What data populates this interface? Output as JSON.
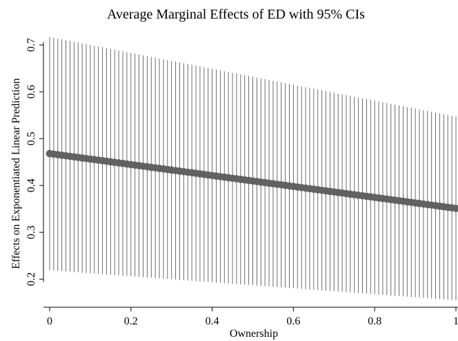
{
  "chart_data": {
    "type": "line",
    "title": "Average Marginal Effects of ED with 95% CIs",
    "xlabel": "Ownership",
    "ylabel": "Effects on Exponentiated Linear Prediction",
    "xlim": [
      0,
      1
    ],
    "ylim": [
      0.14,
      0.74
    ],
    "x_ticks": [
      0,
      0.2,
      0.4,
      0.6,
      0.8,
      1
    ],
    "x_tick_labels": [
      "0",
      "0.2",
      "0.4",
      "0.6",
      "0.8",
      "1"
    ],
    "y_ticks": [
      0.2,
      0.3,
      0.4,
      0.5,
      0.6,
      0.7
    ],
    "y_tick_labels": [
      "0.2",
      "0.3",
      "0.4",
      "0.5",
      "0.6",
      "0.7"
    ],
    "grid": false,
    "n_points": 101,
    "estimate": {
      "start": 0.468,
      "end": 0.351
    },
    "ci_upper": {
      "start": 0.717,
      "end": 0.547
    },
    "ci_lower": {
      "start": 0.219,
      "end": 0.155
    },
    "colors": {
      "marker": "#616161",
      "ci": "#5a5a5a",
      "axis": "#000000"
    }
  }
}
